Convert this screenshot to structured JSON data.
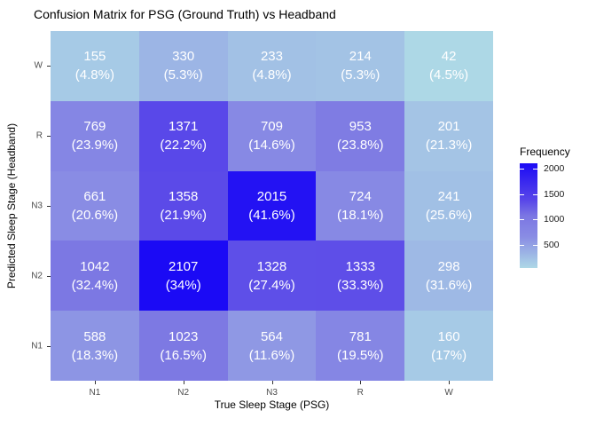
{
  "chart_data": {
    "type": "heatmap",
    "title": "Confusion Matrix for PSG (Ground Truth) vs Headband",
    "xlabel": "True Sleep Stage (PSG)",
    "ylabel": "Predicted Sleep Stage (Headband)",
    "x_categories": [
      "N1",
      "N2",
      "N3",
      "R",
      "W"
    ],
    "y_categories_top_to_bottom": [
      "W",
      "R",
      "N3",
      "N2",
      "N1"
    ],
    "rows": [
      {
        "label": "W",
        "counts": [
          155,
          330,
          233,
          214,
          42
        ],
        "percents": [
          "(4.8%)",
          "(5.3%)",
          "(4.8%)",
          "(5.3%)",
          "(4.5%)"
        ]
      },
      {
        "label": "R",
        "counts": [
          769,
          1371,
          709,
          953,
          201
        ],
        "percents": [
          "(23.9%)",
          "(22.2%)",
          "(14.6%)",
          "(23.8%)",
          "(21.3%)"
        ]
      },
      {
        "label": "N3",
        "counts": [
          661,
          1358,
          2015,
          724,
          241
        ],
        "percents": [
          "(20.6%)",
          "(21.9%)",
          "(41.6%)",
          "(18.1%)",
          "(25.6%)"
        ]
      },
      {
        "label": "N2",
        "counts": [
          1042,
          2107,
          1328,
          1333,
          298
        ],
        "percents": [
          "(32.4%)",
          "(34%)",
          "(27.4%)",
          "(33.3%)",
          "(31.6%)"
        ]
      },
      {
        "label": "N1",
        "counts": [
          588,
          1023,
          564,
          781,
          160
        ],
        "percents": [
          "(18.3%)",
          "(16.5%)",
          "(11.6%)",
          "(19.5%)",
          "(17%)"
        ]
      }
    ],
    "value_range": [
      42,
      2107
    ],
    "legend": {
      "title": "Frequency",
      "ticks": [
        2000,
        1500,
        1000,
        500
      ],
      "position": "right"
    },
    "color_scale": {
      "low": "#ADD8E6",
      "high": "#1B0AF5",
      "stops": [
        {
          "t": 0,
          "color": "#ADD8E6"
        },
        {
          "t": 0.3,
          "color": "#898CE4"
        },
        {
          "t": 0.5,
          "color": "#7B76E3"
        },
        {
          "t": 0.65,
          "color": "#5846E9"
        },
        {
          "t": 1,
          "color": "#1B0AF5"
        }
      ]
    },
    "grid": false,
    "cell_text_color": "#FFFFFF"
  }
}
